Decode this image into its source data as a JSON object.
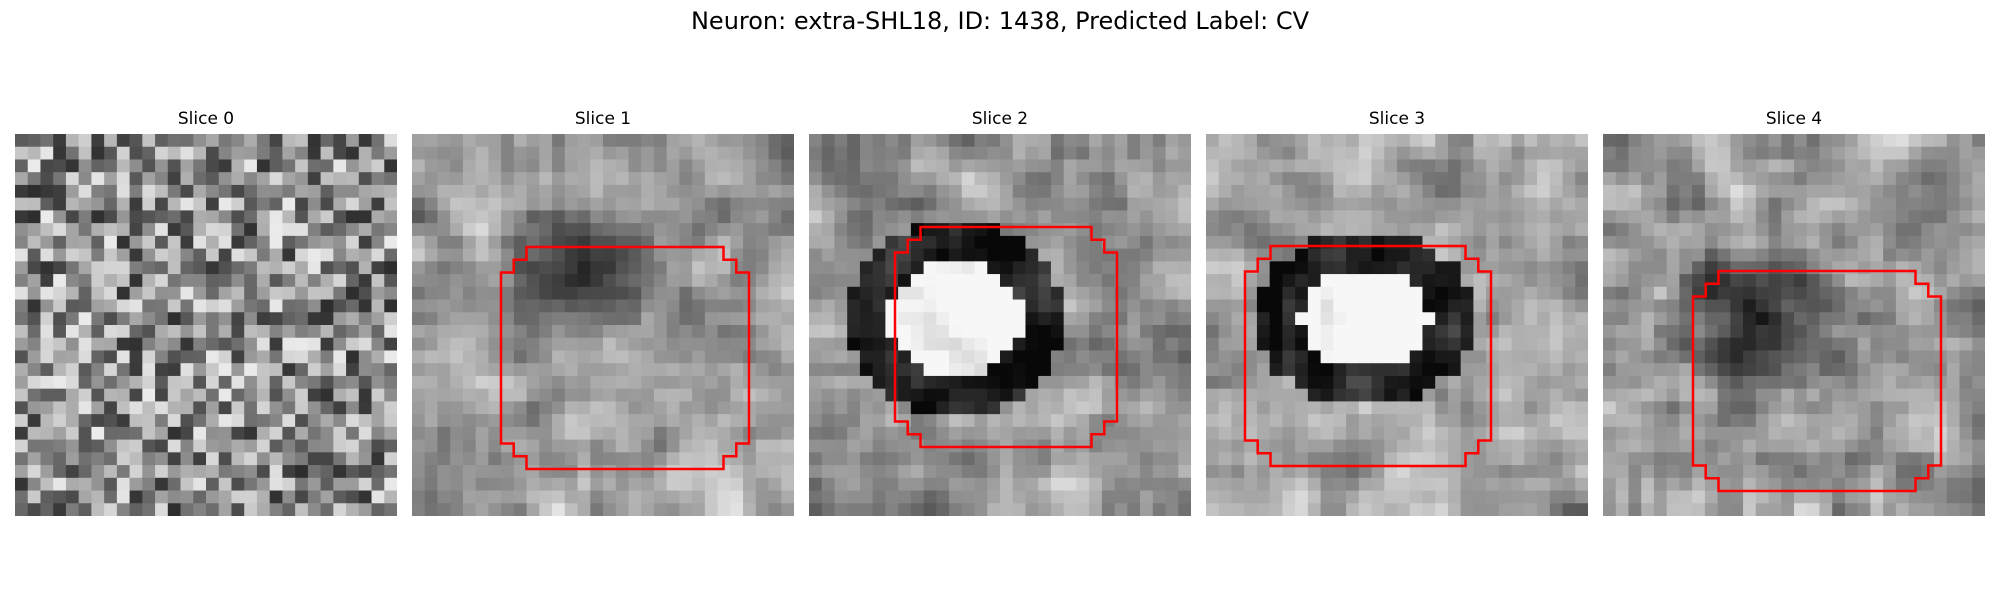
{
  "figure": {
    "title": "Neuron: extra-SHL18, ID: 1438, Predicted Label: CV"
  },
  "colors": {
    "contour": "#ff0000",
    "colormap": "gray",
    "background": "#ffffff"
  },
  "panels": [
    {
      "title": "Slice 0",
      "has_contour": false
    },
    {
      "title": "Slice 1",
      "has_contour": true
    },
    {
      "title": "Slice 2",
      "has_contour": true
    },
    {
      "title": "Slice 3",
      "has_contour": true
    },
    {
      "title": "Slice 4",
      "has_contour": true
    }
  ]
}
